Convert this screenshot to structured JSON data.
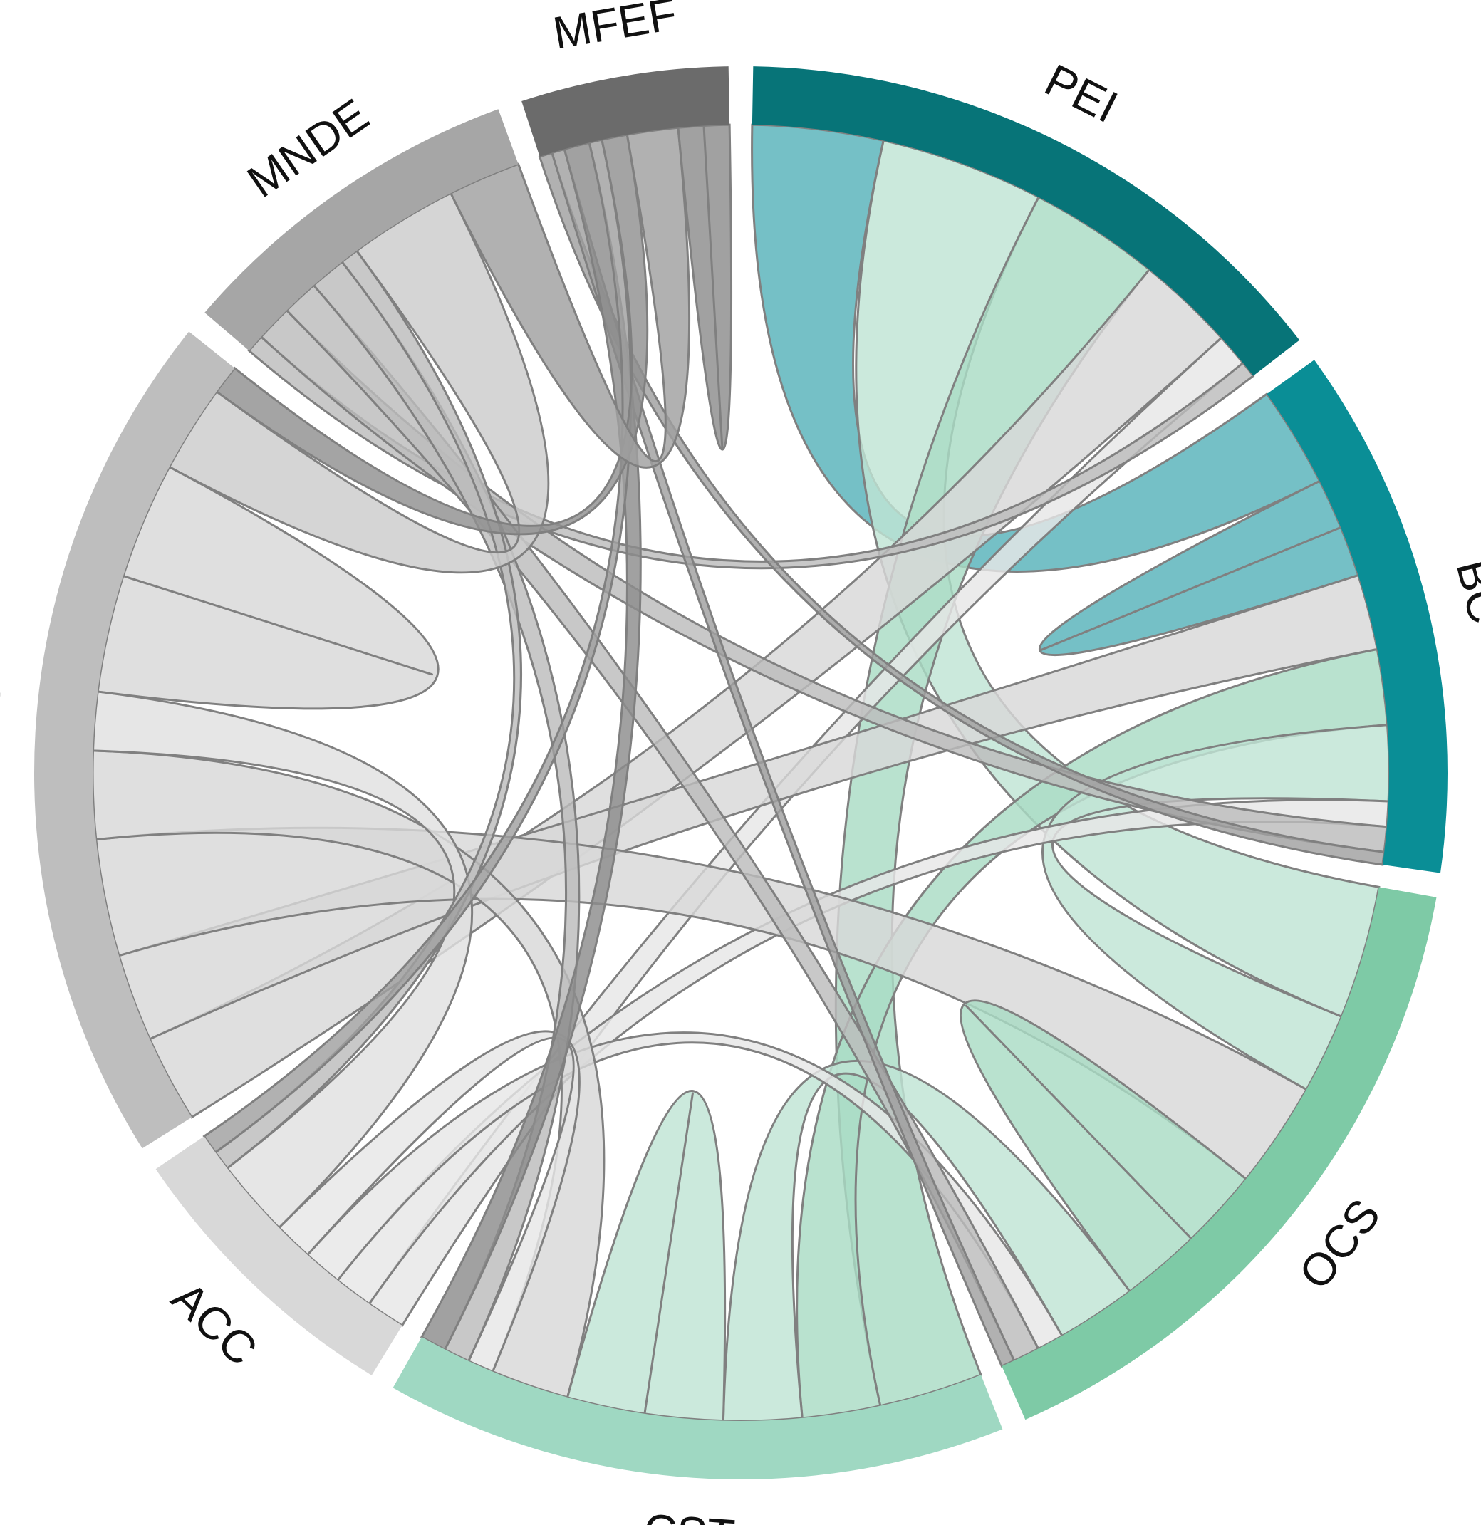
{
  "chart_data": {
    "type": "chord",
    "sectors": [
      {
        "name": "PEI",
        "color": "#077478",
        "size": 21
      },
      {
        "name": "BC",
        "color": "#0a8e96",
        "size": 18
      },
      {
        "name": "OCS",
        "color": "#7ecaa6",
        "size": 23
      },
      {
        "name": "CST",
        "color": "#9fd8c2",
        "size": 21
      },
      {
        "name": "ACC",
        "color": "#d8d8d8",
        "size": 10
      },
      {
        "name": "MAS",
        "color": "#bebebe",
        "size": 29
      },
      {
        "name": "MNDE",
        "color": "#a6a6a6",
        "size": 12
      },
      {
        "name": "MFEF",
        "color": "#6b6b6b",
        "size": 7
      }
    ],
    "links": [
      {
        "source": "PEI",
        "target": "BC",
        "value": 4,
        "color": "#57b2b9"
      },
      {
        "source": "PEI",
        "target": "OCS",
        "value": 5,
        "color": "#c0e4d4"
      },
      {
        "source": "PEI",
        "target": "CST",
        "value": 4,
        "color": "#a9dcc5"
      },
      {
        "source": "PEI",
        "target": "MAS",
        "value": 3,
        "color": "#d8d8d8"
      },
      {
        "source": "PEI",
        "target": "ACC",
        "value": 1,
        "color": "#e6e6e6"
      },
      {
        "source": "PEI",
        "target": "MNDE",
        "value": 0.5,
        "color": "#bcbcbc"
      },
      {
        "source": "BC",
        "target": "BC",
        "value": 2,
        "color": "#57b2b9"
      },
      {
        "source": "BC",
        "target": "MAS",
        "value": 3,
        "color": "#d8d8d8"
      },
      {
        "source": "BC",
        "target": "CST",
        "value": 3,
        "color": "#a9dcc5"
      },
      {
        "source": "BC",
        "target": "OCS",
        "value": 3,
        "color": "#c0e4d4"
      },
      {
        "source": "BC",
        "target": "ACC",
        "value": 1,
        "color": "#e6e6e6"
      },
      {
        "source": "BC",
        "target": "MNDE",
        "value": 1,
        "color": "#bcbcbc"
      },
      {
        "source": "BC",
        "target": "MFEF",
        "value": 0.5,
        "color": "#a0a0a0"
      },
      {
        "source": "OCS",
        "target": "MAS",
        "value": 4,
        "color": "#d8d8d8"
      },
      {
        "source": "OCS",
        "target": "OCS",
        "value": 3,
        "color": "#a9dcc5"
      },
      {
        "source": "OCS",
        "target": "CST",
        "value": 3,
        "color": "#c0e4d4"
      },
      {
        "source": "OCS",
        "target": "ACC",
        "value": 1,
        "color": "#e6e6e6"
      },
      {
        "source": "OCS",
        "target": "MNDE",
        "value": 1,
        "color": "#bcbcbc"
      },
      {
        "source": "OCS",
        "target": "MFEF",
        "value": 0.5,
        "color": "#a0a0a0"
      },
      {
        "source": "CST",
        "target": "CST",
        "value": 3,
        "color": "#c0e4d4"
      },
      {
        "source": "CST",
        "target": "MAS",
        "value": 3,
        "color": "#d8d8d8"
      },
      {
        "source": "CST",
        "target": "ACC",
        "value": 1,
        "color": "#e6e6e6"
      },
      {
        "source": "CST",
        "target": "MNDE",
        "value": 1,
        "color": "#bcbcbc"
      },
      {
        "source": "CST",
        "target": "MFEF",
        "value": 1,
        "color": "#8c8c8c"
      },
      {
        "source": "ACC",
        "target": "MAS",
        "value": 2,
        "color": "#e0e0e0"
      },
      {
        "source": "ACC",
        "target": "MNDE",
        "value": 0.5,
        "color": "#bcbcbc"
      },
      {
        "source": "ACC",
        "target": "MFEF",
        "value": 0.5,
        "color": "#a0a0a0"
      },
      {
        "source": "MAS",
        "target": "MAS",
        "value": 4,
        "color": "#d8d8d8"
      },
      {
        "source": "MAS",
        "target": "MNDE",
        "value": 3,
        "color": "#cccccc"
      },
      {
        "source": "MAS",
        "target": "MFEF",
        "value": 1,
        "color": "#909090"
      },
      {
        "source": "MNDE",
        "target": "MFEF",
        "value": 2,
        "color": "#a0a0a0"
      },
      {
        "source": "MFEF",
        "target": "MFEF",
        "value": 1,
        "color": "#8c8c8c"
      }
    ],
    "title": "",
    "legend": "none"
  }
}
